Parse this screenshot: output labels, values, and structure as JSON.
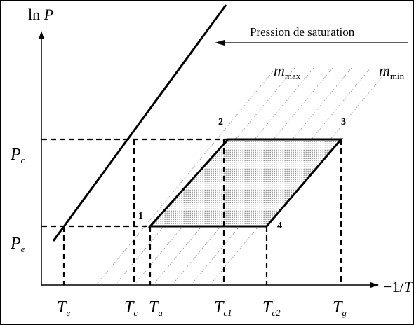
{
  "axes": {
    "y_label_ln": "ln",
    "y_label_var": "P",
    "x_label": "−1/",
    "x_label_var": "T"
  },
  "annotation": {
    "saturation": "Pression de saturation"
  },
  "mass_labels": {
    "max_var": "m",
    "max_sub": "max",
    "min_var": "m",
    "min_sub": "min"
  },
  "y_ticks": [
    {
      "var": "P",
      "sub": "c"
    },
    {
      "var": "P",
      "sub": "e"
    }
  ],
  "x_ticks": [
    {
      "var": "T",
      "sub": "e"
    },
    {
      "var": "T",
      "sub": "c"
    },
    {
      "var": "T",
      "sub": "a"
    },
    {
      "var": "T",
      "sub": "c1"
    },
    {
      "var": "T",
      "sub": "c2"
    },
    {
      "var": "T",
      "sub": "g"
    }
  ],
  "points": [
    "1",
    "2",
    "3",
    "4"
  ],
  "colors": {
    "line": "#000000",
    "fill_dot": "#8a8a8a",
    "hatch": "#9a9a9a"
  }
}
